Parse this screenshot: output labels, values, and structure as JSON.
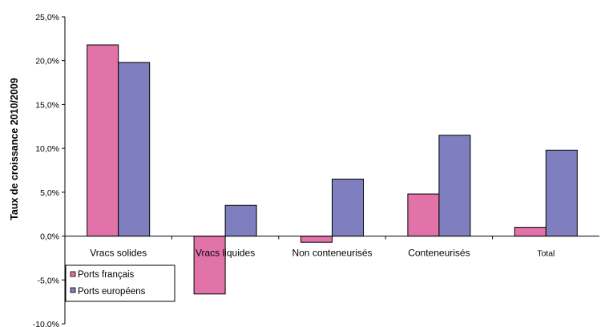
{
  "chart_data": {
    "type": "bar",
    "title": "",
    "xlabel": "",
    "ylabel": "Taux de croissance 2010/2009",
    "ylim": [
      -10,
      25
    ],
    "yticks": [
      "-10,0%",
      "-5,0%",
      "0,0%",
      "5,0%",
      "10,0%",
      "15,0%",
      "20,0%",
      "25,0%"
    ],
    "categories": [
      "Vracs solides",
      "Vracs liquides",
      "Non conteneurisés",
      "Conteneurisés",
      "Total"
    ],
    "series": [
      {
        "name": "Ports français",
        "color": "#e173a9",
        "values": [
          21.8,
          -6.6,
          -0.7,
          4.8,
          1.0
        ]
      },
      {
        "name": "Ports européens",
        "color": "#7f7fbf",
        "values": [
          19.8,
          3.5,
          6.5,
          11.5,
          9.8
        ]
      }
    ],
    "grid": false,
    "legend": "bottom-left"
  }
}
